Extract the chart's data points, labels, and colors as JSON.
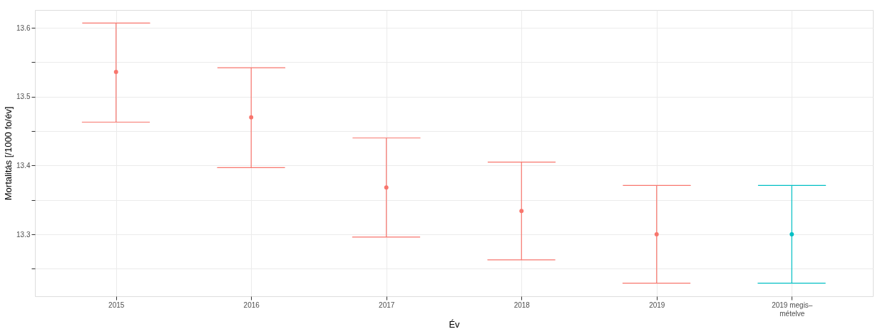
{
  "chart_data": {
    "type": "scatter",
    "xlabel": "Év",
    "ylabel": "Mortalitás [/1000 fo/év]",
    "categories": [
      "2015",
      "2016",
      "2017",
      "2018",
      "2019",
      "2019 megis–\nmételve"
    ],
    "values": [
      13.536,
      13.47,
      13.368,
      13.334,
      13.3,
      13.3
    ],
    "errors": [
      [
        13.463,
        13.607
      ],
      [
        13.397,
        13.542
      ],
      [
        13.296,
        13.44
      ],
      [
        13.263,
        13.405
      ],
      [
        13.229,
        13.371
      ],
      [
        13.229,
        13.371
      ]
    ],
    "colors": [
      "#f8766d",
      "#f8766d",
      "#f8766d",
      "#f8766d",
      "#f8766d",
      "#00bfc4"
    ],
    "ylim": [
      13.21,
      13.626
    ],
    "yticks": [
      {
        "value": 13.25,
        "label": null
      },
      13.3,
      {
        "value": 13.35,
        "label": null
      },
      13.4,
      {
        "value": 13.45,
        "label": null
      },
      13.5,
      {
        "value": 13.55,
        "label": null
      },
      13.6
    ],
    "grid": true,
    "marker": "circle"
  }
}
